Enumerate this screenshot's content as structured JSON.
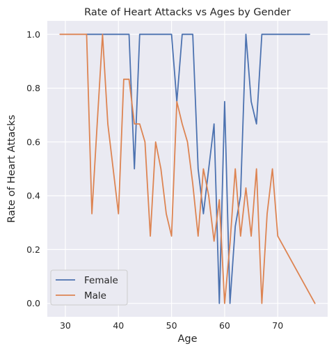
{
  "chart_data": {
    "type": "line",
    "title": "Rate of Heart Attacks vs Ages by Gender",
    "xlabel": "Age",
    "ylabel": "Rate of Heart Attacks",
    "xlim": [
      26.6,
      79.4
    ],
    "ylim": [
      -0.05,
      1.05
    ],
    "xticks": [
      30,
      40,
      50,
      60,
      70
    ],
    "yticks": [
      0.0,
      0.2,
      0.4,
      0.6,
      0.8,
      1.0
    ],
    "ytick_labels": [
      "0.0",
      "0.2",
      "0.4",
      "0.6",
      "0.8",
      "1.0"
    ],
    "grid": true,
    "legend_position": "lower-left",
    "series": [
      {
        "name": "Female",
        "color": "#4c72b0",
        "x": [
          34,
          35,
          37,
          39,
          41,
          42,
          43,
          44,
          45,
          46,
          48,
          49,
          50,
          51,
          52,
          53,
          54,
          55,
          56,
          57,
          58,
          59,
          60,
          61,
          62,
          63,
          64,
          65,
          66,
          67,
          68,
          71,
          76
        ],
        "y": [
          1.0,
          1.0,
          1.0,
          1.0,
          1.0,
          1.0,
          0.5,
          1.0,
          1.0,
          1.0,
          1.0,
          1.0,
          1.0,
          0.75,
          1.0,
          1.0,
          1.0,
          0.5,
          0.333,
          0.5,
          0.667,
          0.0,
          0.75,
          0.0,
          0.286,
          0.4,
          1.0,
          0.75,
          0.667,
          1.0,
          1.0,
          1.0,
          1.0
        ]
      },
      {
        "name": "Male",
        "color": "#dd8452",
        "x": [
          29,
          34,
          35,
          36,
          37,
          38,
          40,
          41,
          42,
          43,
          44,
          45,
          46,
          47,
          48,
          49,
          50,
          51,
          52,
          53,
          54,
          55,
          56,
          57,
          58,
          59,
          60,
          61,
          62,
          63,
          64,
          65,
          66,
          67,
          68,
          69,
          70,
          77
        ],
        "y": [
          1.0,
          1.0,
          0.333,
          0.667,
          1.0,
          0.667,
          0.333,
          0.833,
          0.833,
          0.667,
          0.667,
          0.6,
          0.25,
          0.6,
          0.5,
          0.333,
          0.25,
          0.75,
          0.667,
          0.6,
          0.444,
          0.25,
          0.5,
          0.4,
          0.231,
          0.385,
          0.0,
          0.222,
          0.5,
          0.25,
          0.429,
          0.25,
          0.5,
          0.0,
          0.333,
          0.5,
          0.25,
          0.0
        ]
      }
    ]
  }
}
